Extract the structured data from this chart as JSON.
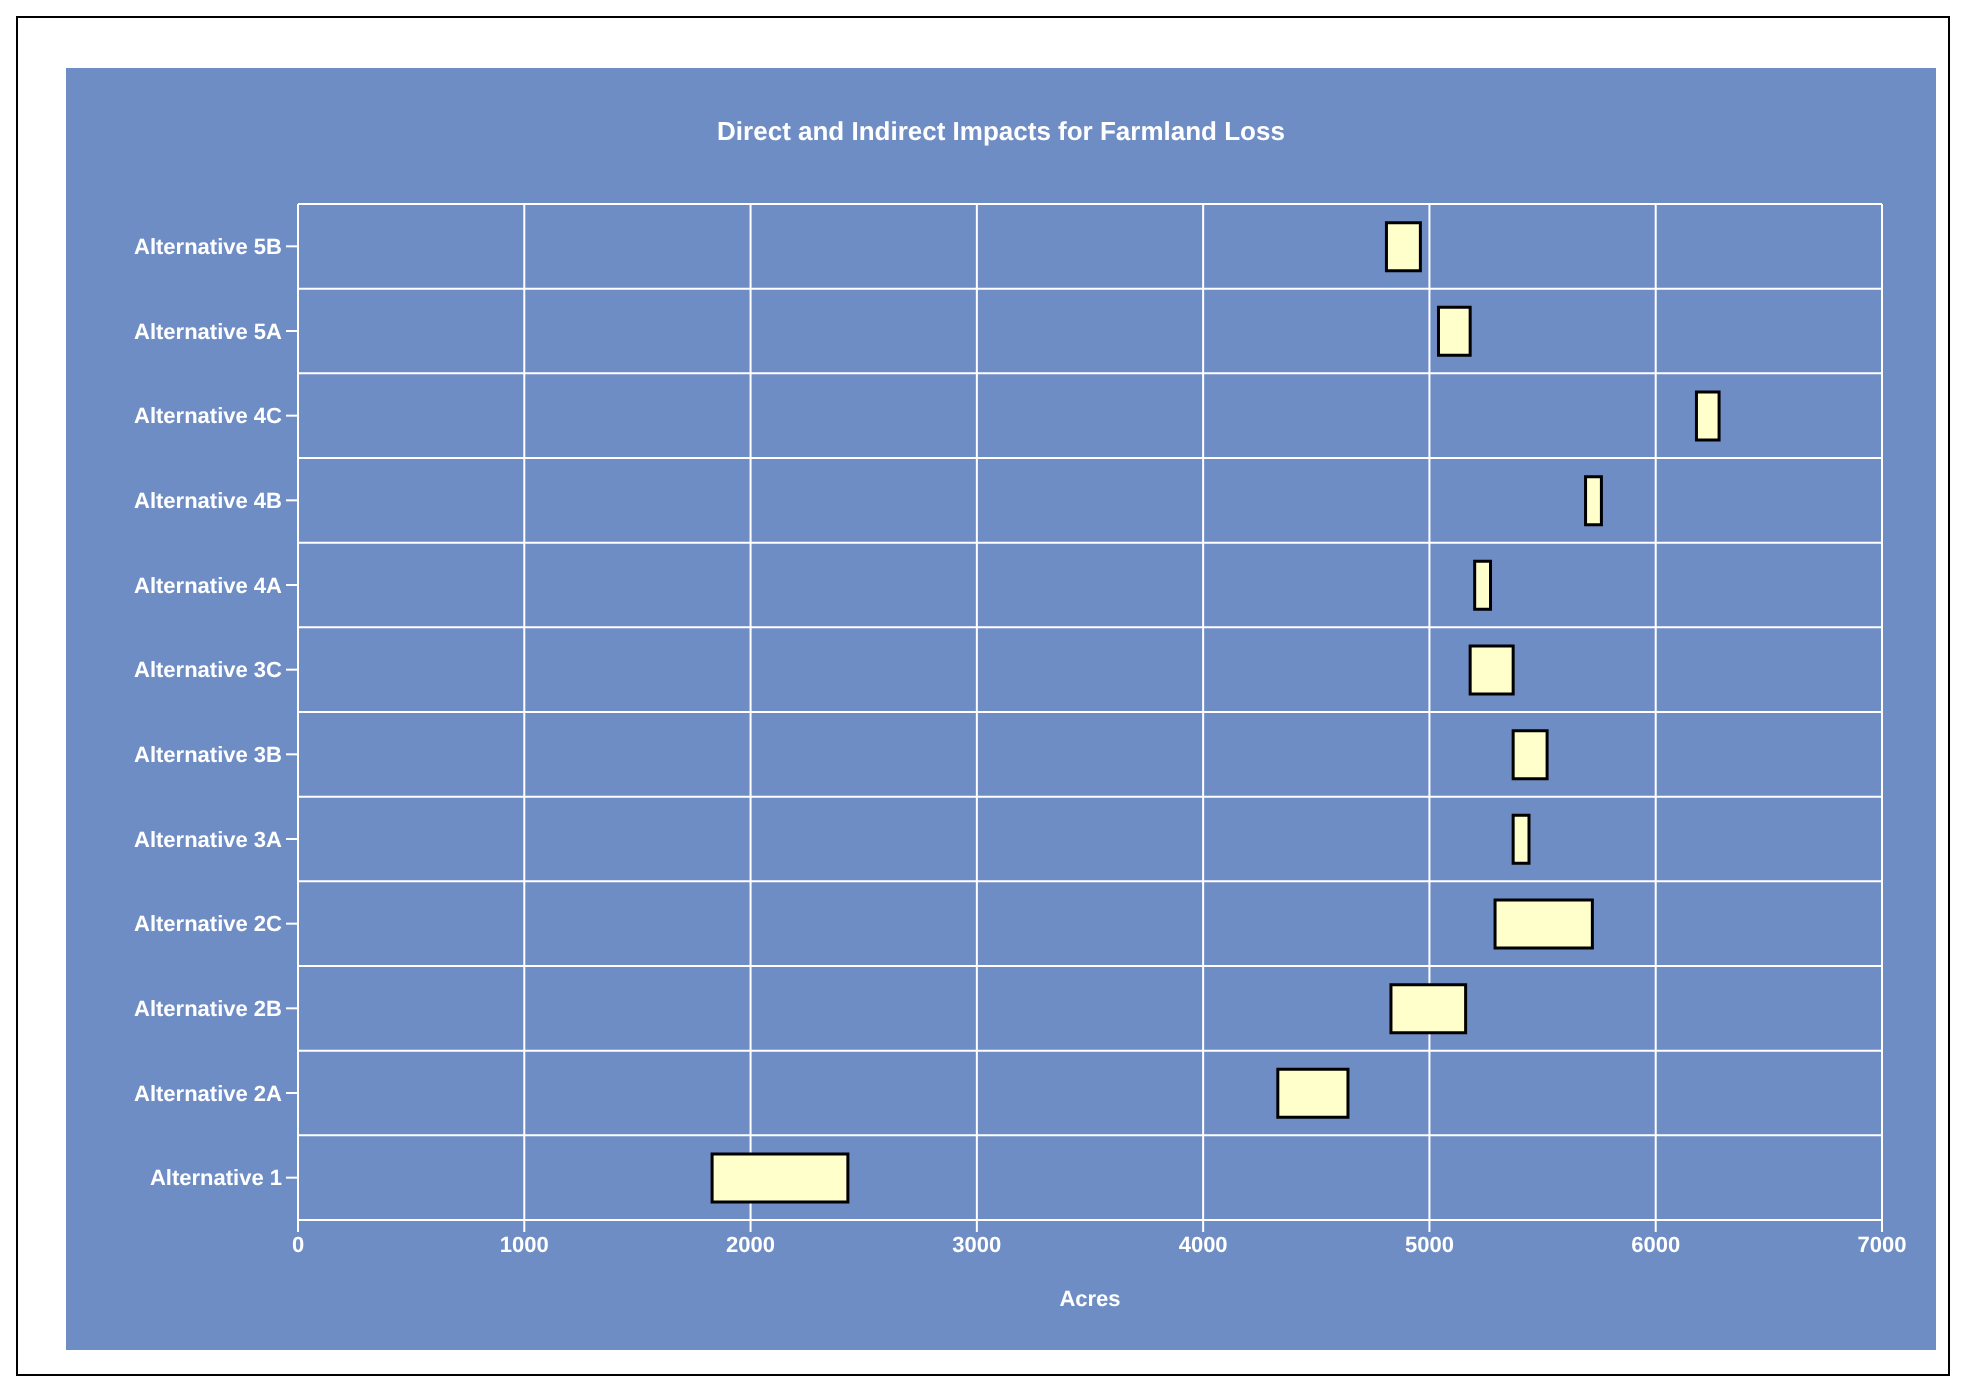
{
  "chart_data": {
    "type": "bar",
    "orientation": "horizontal",
    "title": "Direct and Indirect Impacts for Farmland Loss",
    "xlabel": "Acres",
    "categories": [
      "Alternative 5B",
      "Alternative 5A",
      "Alternative 4C",
      "Alternative 4B",
      "Alternative 4A",
      "Alternative 3C",
      "Alternative 3B",
      "Alternative 3A",
      "Alternative 2C",
      "Alternative 2B",
      "Alternative 2A",
      "Alternative 1"
    ],
    "base": [
      4810,
      5040,
      6180,
      5690,
      5200,
      5180,
      5370,
      5370,
      5290,
      4830,
      4330,
      1830
    ],
    "values": [
      150,
      140,
      100,
      70,
      70,
      190,
      150,
      70,
      430,
      330,
      310,
      600
    ],
    "color": "#ffffcc",
    "xlim": [
      0,
      7000
    ],
    "xticks": [
      0,
      1000,
      2000,
      3000,
      4000,
      5000,
      6000,
      7000
    ],
    "grid": true
  }
}
